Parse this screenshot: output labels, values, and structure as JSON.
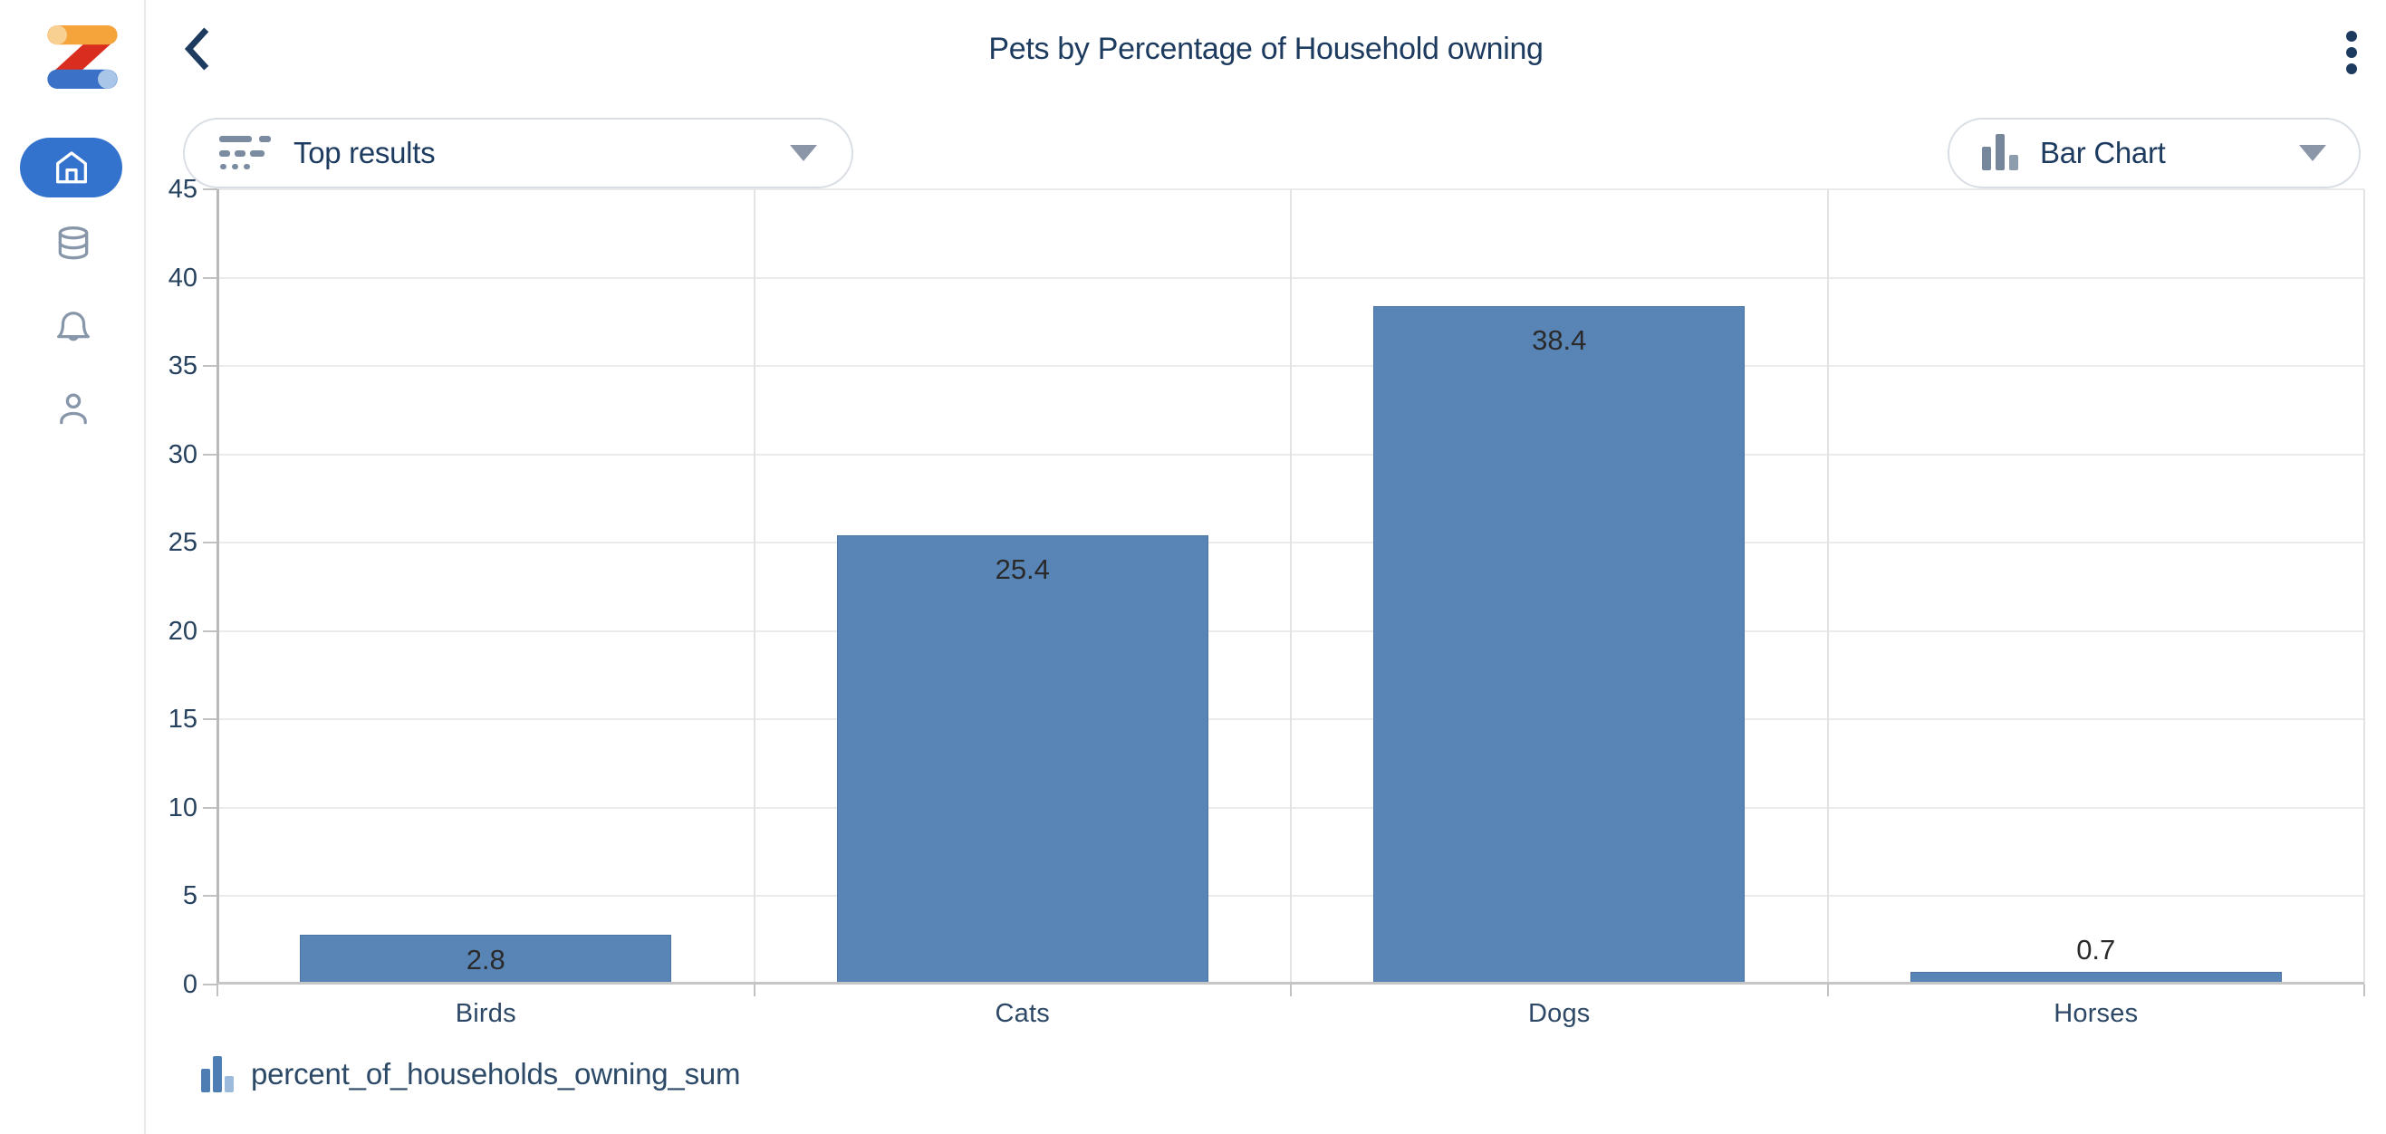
{
  "header": {
    "title": "Pets by Percentage of Household owning",
    "back_icon": "chevron-left-icon",
    "menu_icon": "kebab-menu-icon"
  },
  "sidebar": {
    "logo_icon": "zing-z-logo",
    "items": [
      {
        "id": "home",
        "icon": "home-icon",
        "active": true
      },
      {
        "id": "data-sources",
        "icon": "database-icon",
        "active": false
      },
      {
        "id": "notifications",
        "icon": "bell-icon",
        "active": false
      },
      {
        "id": "profile",
        "icon": "person-icon",
        "active": false
      }
    ],
    "active_pill_color": "#3473cd"
  },
  "controls": {
    "results_dropdown": {
      "label": "Top results",
      "icon": "top-results-icon",
      "caret_icon": "caret-down-icon"
    },
    "chart_type_dropdown": {
      "label": "Bar Chart",
      "icon": "bar-chart-icon",
      "caret_icon": "caret-down-icon"
    }
  },
  "legend": {
    "icon": "bar-chart-icon",
    "label": "percent_of_households_owning_sum"
  },
  "chart_data": {
    "type": "bar",
    "title": "Pets by Percentage of Household owning",
    "categories": [
      "Birds",
      "Cats",
      "Dogs",
      "Horses"
    ],
    "values": [
      2.8,
      25.4,
      38.4,
      0.7
    ],
    "series_name": "percent_of_households_owning_sum",
    "xlabel": "",
    "ylabel": "",
    "ylim": [
      0,
      45
    ],
    "ytick_step": 5,
    "grid": true,
    "legend_position": "bottom-left",
    "bar_color": "#5885b6",
    "value_label_color": "#2a2a2a",
    "axis_text_color": "#27425e"
  },
  "colors": {
    "title_navy": "#1d3a5f",
    "bar_fill": "#5885b6",
    "active_nav": "#3473cd",
    "logo_orange": "#f5a43c",
    "logo_red": "#d92d20",
    "logo_blue": "#3b72c8"
  }
}
